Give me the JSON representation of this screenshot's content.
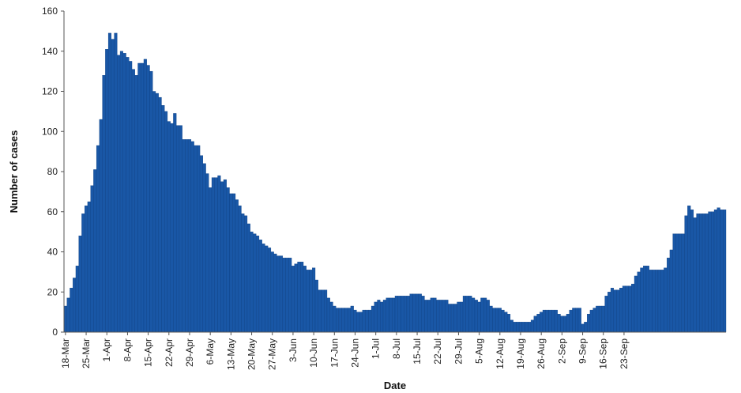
{
  "chart_data": {
    "type": "bar",
    "title": "",
    "xlabel": "Date",
    "ylabel": "Number of cases",
    "ylim": [
      0,
      160
    ],
    "yticks": [
      0,
      20,
      40,
      60,
      80,
      100,
      120,
      140,
      160
    ],
    "grid": false,
    "legend": "none",
    "bar_color": "#1957a6",
    "start_date": "18-Mar",
    "xtick_labels": [
      "18-Mar",
      "25-Mar",
      "1-Apr",
      "8-Apr",
      "15-Apr",
      "22-Apr",
      "29-Apr",
      "6-May",
      "13-May",
      "20-May",
      "27-May",
      "3-Jun",
      "10-Jun",
      "17-Jun",
      "24-Jun",
      "1-Jul",
      "8-Jul",
      "15-Jul",
      "22-Jul",
      "29-Jul",
      "5-Aug",
      "12-Aug",
      "19-Aug",
      "26-Aug",
      "2-Sep",
      "9-Sep",
      "16-Sep",
      "23-Sep"
    ],
    "values": [
      13,
      17,
      22,
      27,
      33,
      48,
      59,
      63,
      65,
      73,
      81,
      93,
      106,
      128,
      141,
      149,
      146,
      149,
      138,
      140,
      139,
      137,
      135,
      131,
      128,
      134,
      134,
      136,
      133,
      130,
      120,
      119,
      117,
      113,
      110,
      105,
      104,
      109,
      103,
      103,
      96,
      96,
      96,
      95,
      93,
      93,
      88,
      84,
      79,
      72,
      77,
      77,
      78,
      75,
      76,
      72,
      69,
      69,
      66,
      63,
      59,
      58,
      54,
      50,
      49,
      48,
      46,
      44,
      43,
      42,
      40,
      39,
      38,
      38,
      37,
      37,
      37,
      33,
      34,
      35,
      35,
      33,
      31,
      31,
      32,
      26,
      21,
      21,
      21,
      17,
      15,
      13,
      12,
      12,
      12,
      12,
      12,
      13,
      11,
      10,
      10,
      11,
      11,
      11,
      13,
      15,
      16,
      15,
      16,
      17,
      17,
      17,
      18,
      18,
      18,
      18,
      18,
      19,
      19,
      19,
      19,
      18,
      16,
      16,
      17,
      17,
      16,
      16,
      16,
      16,
      14,
      14,
      14,
      15,
      15,
      18,
      18,
      18,
      17,
      16,
      15,
      17,
      17,
      16,
      13,
      12,
      12,
      12,
      11,
      10,
      9,
      6,
      5,
      5,
      5,
      5,
      5,
      5,
      6,
      8,
      9,
      10,
      11,
      11,
      11,
      11,
      11,
      9,
      8,
      8,
      9,
      11,
      12,
      12,
      12,
      4,
      5,
      9,
      11,
      12,
      13,
      13,
      13,
      18,
      20,
      22,
      21,
      21,
      22,
      23,
      23,
      23,
      24,
      28,
      30,
      32,
      33,
      33,
      31,
      31,
      31,
      31,
      31,
      32,
      37,
      41,
      49,
      49,
      49,
      49,
      58,
      63,
      61,
      57,
      59,
      59,
      59,
      59,
      60,
      60,
      61,
      62,
      61,
      61
    ]
  }
}
